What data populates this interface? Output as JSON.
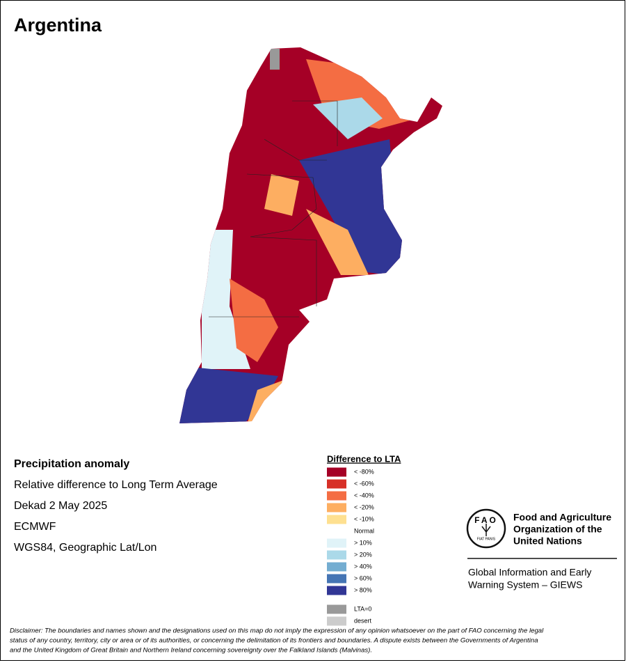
{
  "title": "Argentina",
  "info": [
    "Precipitation anomaly",
    "Relative difference to Long Term Average",
    "Dekad 2 May 2025",
    "ECMWF",
    "WGS84, Geographic Lat/Lon"
  ],
  "legend": {
    "title": "Difference to LTA",
    "items": [
      {
        "label": "< -80%",
        "color": "#a50026"
      },
      {
        "label": "< -60%",
        "color": "#d73027"
      },
      {
        "label": "< -40%",
        "color": "#f46d43"
      },
      {
        "label": "< -20%",
        "color": "#fdae61"
      },
      {
        "label": "< -10%",
        "color": "#fee090"
      },
      {
        "label": "Normal",
        "color": "#ffffff"
      },
      {
        "label": "> 10%",
        "color": "#e0f3f8"
      },
      {
        "label": "> 20%",
        "color": "#abd9e9"
      },
      {
        "label": "> 40%",
        "color": "#74add1"
      },
      {
        "label": "> 60%",
        "color": "#4575b4"
      },
      {
        "label": "> 80%",
        "color": "#313695"
      }
    ],
    "extra": [
      {
        "label": "LTA=0",
        "color": "#999999"
      },
      {
        "label": "desert",
        "color": "#cccccc"
      }
    ]
  },
  "logo": {
    "fao": "FAO",
    "motto": "FIAT PANIS",
    "org": [
      "Food and Agriculture",
      "Organization of the",
      "United Nations"
    ],
    "system": [
      "Global Information and Early",
      "Warning System – GIEWS"
    ]
  },
  "disclaimer": [
    "Disclaimer: The boundaries and names shown and the designations used on this map do not imply the expression of any opinion whatsoever on the part of FAO concerning the legal",
    "status of any country, territory, city or area or of its authorities, or concerning the delimitation of its frontiers and boundaries. A dispute exists between the Governments of Argentina",
    "and the United Kingdom of Great Britain and Northern Ireland concerning sovereignty over the Falkland Islands (Malvinas)."
  ]
}
